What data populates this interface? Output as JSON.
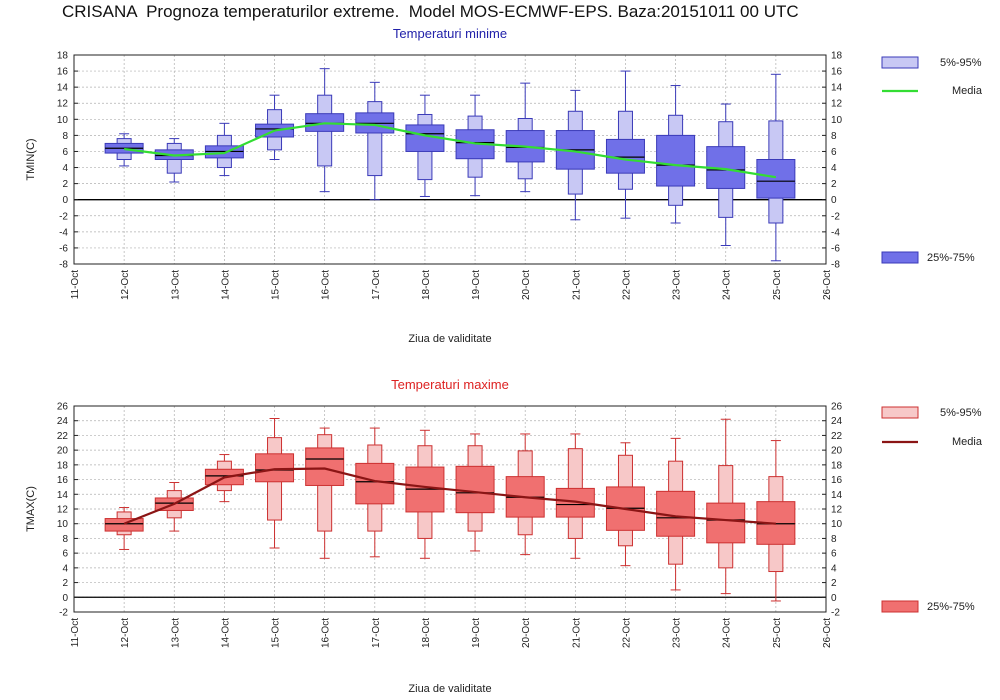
{
  "title": "CRISANA  Prognoza temperaturilor extreme.  Model MOS-ECMWF-EPS. Baza:20151011 00 UTC",
  "chart_data": [
    {
      "type": "box",
      "title": "Temperaturi minime",
      "xlabel": "Ziua de validitate",
      "ylabel": "TMIN(C)",
      "ylim": [
        -8,
        18
      ],
      "yticks": [
        -8,
        -6,
        -4,
        -2,
        0,
        2,
        4,
        6,
        8,
        10,
        12,
        14,
        16,
        18
      ],
      "x_ticks": [
        "11-Oct",
        "12-Oct",
        "13-Oct",
        "14-Oct",
        "15-Oct",
        "16-Oct",
        "17-Oct",
        "18-Oct",
        "19-Oct",
        "20-Oct",
        "21-Oct",
        "22-Oct",
        "23-Oct",
        "24-Oct",
        "25-Oct",
        "26-Oct"
      ],
      "categories": [
        "12-Oct",
        "13-Oct",
        "14-Oct",
        "15-Oct",
        "16-Oct",
        "17-Oct",
        "18-Oct",
        "19-Oct",
        "20-Oct",
        "21-Oct",
        "22-Oct",
        "23-Oct",
        "24-Oct",
        "25-Oct"
      ],
      "colors": {
        "light": "#c8c8f4",
        "dark": "#7070e8",
        "edge": "#3a3ab8",
        "media": "#33dd33",
        "title": "#2222aa"
      },
      "legend": {
        "light": "5%-95%",
        "media": "Media",
        "dark": "25%-75%"
      },
      "series": [
        {
          "name": "min",
          "values": [
            4.2,
            2.2,
            3.0,
            5.0,
            1.0,
            0.0,
            0.4,
            0.5,
            1.0,
            -2.5,
            -2.3,
            -2.9,
            -5.7,
            -7.6
          ]
        },
        {
          "name": "p5",
          "values": [
            5.0,
            3.3,
            4.0,
            6.2,
            4.2,
            3.0,
            2.5,
            2.8,
            2.6,
            0.7,
            1.3,
            -0.7,
            -2.2,
            -2.9
          ]
        },
        {
          "name": "p25",
          "values": [
            5.8,
            5.0,
            5.2,
            7.8,
            8.5,
            8.3,
            6.0,
            5.1,
            4.7,
            3.8,
            3.3,
            1.7,
            1.4,
            0.2
          ]
        },
        {
          "name": "median",
          "values": [
            6.4,
            5.5,
            6.0,
            8.8,
            9.5,
            9.5,
            8.2,
            7.1,
            6.5,
            6.2,
            5.3,
            4.3,
            3.7,
            2.3
          ]
        },
        {
          "name": "p75",
          "values": [
            7.0,
            6.2,
            6.7,
            9.4,
            10.7,
            10.8,
            9.3,
            8.7,
            8.6,
            8.6,
            7.5,
            8.0,
            6.6,
            5.0
          ]
        },
        {
          "name": "p95",
          "values": [
            7.6,
            7.0,
            8.0,
            11.2,
            13.0,
            12.2,
            10.6,
            10.4,
            10.1,
            11.0,
            11.0,
            10.5,
            9.7,
            9.8
          ]
        },
        {
          "name": "max",
          "values": [
            8.2,
            7.6,
            9.5,
            13.0,
            16.3,
            14.6,
            13.0,
            13.0,
            14.5,
            13.6,
            16.0,
            14.2,
            11.9,
            15.6
          ]
        },
        {
          "name": "Media",
          "values": [
            6.3,
            5.5,
            5.8,
            8.6,
            9.5,
            9.3,
            8.0,
            7.0,
            6.6,
            6.0,
            5.0,
            4.3,
            3.8,
            2.8
          ]
        }
      ]
    },
    {
      "type": "box",
      "title": "Temperaturi maxime",
      "xlabel": "Ziua de validitate",
      "ylabel": "TMAX(C)",
      "ylim": [
        -2,
        26
      ],
      "yticks": [
        -2,
        0,
        2,
        4,
        6,
        8,
        10,
        12,
        14,
        16,
        18,
        20,
        22,
        24,
        26
      ],
      "x_ticks": [
        "11-Oct",
        "12-Oct",
        "13-Oct",
        "14-Oct",
        "15-Oct",
        "16-Oct",
        "17-Oct",
        "18-Oct",
        "19-Oct",
        "20-Oct",
        "21-Oct",
        "22-Oct",
        "23-Oct",
        "24-Oct",
        "25-Oct",
        "26-Oct"
      ],
      "categories": [
        "12-Oct",
        "13-Oct",
        "14-Oct",
        "15-Oct",
        "16-Oct",
        "17-Oct",
        "18-Oct",
        "19-Oct",
        "20-Oct",
        "21-Oct",
        "22-Oct",
        "23-Oct",
        "24-Oct",
        "25-Oct"
      ],
      "colors": {
        "light": "#f7c8c8",
        "dark": "#f07070",
        "edge": "#cc3030",
        "media": "#8b1515",
        "title": "#dd2222"
      },
      "legend": {
        "light": "5%-95%",
        "media": "Media",
        "dark": "25%-75%"
      },
      "series": [
        {
          "name": "min",
          "values": [
            6.5,
            9.0,
            13.0,
            6.7,
            5.3,
            5.5,
            5.3,
            6.3,
            5.8,
            5.3,
            4.3,
            1.0,
            0.5,
            -0.5
          ]
        },
        {
          "name": "p5",
          "values": [
            8.5,
            10.8,
            14.5,
            10.5,
            9.0,
            9.0,
            8.0,
            9.0,
            8.5,
            8.0,
            7.0,
            4.5,
            4.0,
            3.5
          ]
        },
        {
          "name": "p25",
          "values": [
            9.0,
            11.8,
            15.3,
            15.7,
            15.2,
            12.7,
            11.6,
            11.5,
            10.9,
            10.9,
            9.1,
            8.3,
            7.4,
            7.2
          ]
        },
        {
          "name": "median",
          "values": [
            10.0,
            12.8,
            16.5,
            17.3,
            18.8,
            15.7,
            14.7,
            14.2,
            13.6,
            12.6,
            12.1,
            10.8,
            10.5,
            10.0
          ]
        },
        {
          "name": "p75",
          "values": [
            10.7,
            13.5,
            17.4,
            19.5,
            20.3,
            18.2,
            17.7,
            17.8,
            16.4,
            14.8,
            15.0,
            14.4,
            12.8,
            13.0
          ]
        },
        {
          "name": "p95",
          "values": [
            11.6,
            14.5,
            18.5,
            21.7,
            22.1,
            20.7,
            20.6,
            20.6,
            19.9,
            20.2,
            19.3,
            18.5,
            17.9,
            16.4
          ]
        },
        {
          "name": "max",
          "values": [
            12.2,
            15.6,
            19.4,
            24.3,
            23.0,
            23.0,
            22.7,
            22.2,
            22.2,
            22.2,
            21.0,
            21.6,
            24.2,
            21.3
          ]
        },
        {
          "name": "Media",
          "values": [
            10.0,
            12.7,
            16.3,
            17.4,
            17.5,
            15.8,
            15.0,
            14.3,
            13.6,
            13.0,
            12.0,
            11.0,
            10.5,
            10.0
          ]
        }
      ]
    }
  ]
}
